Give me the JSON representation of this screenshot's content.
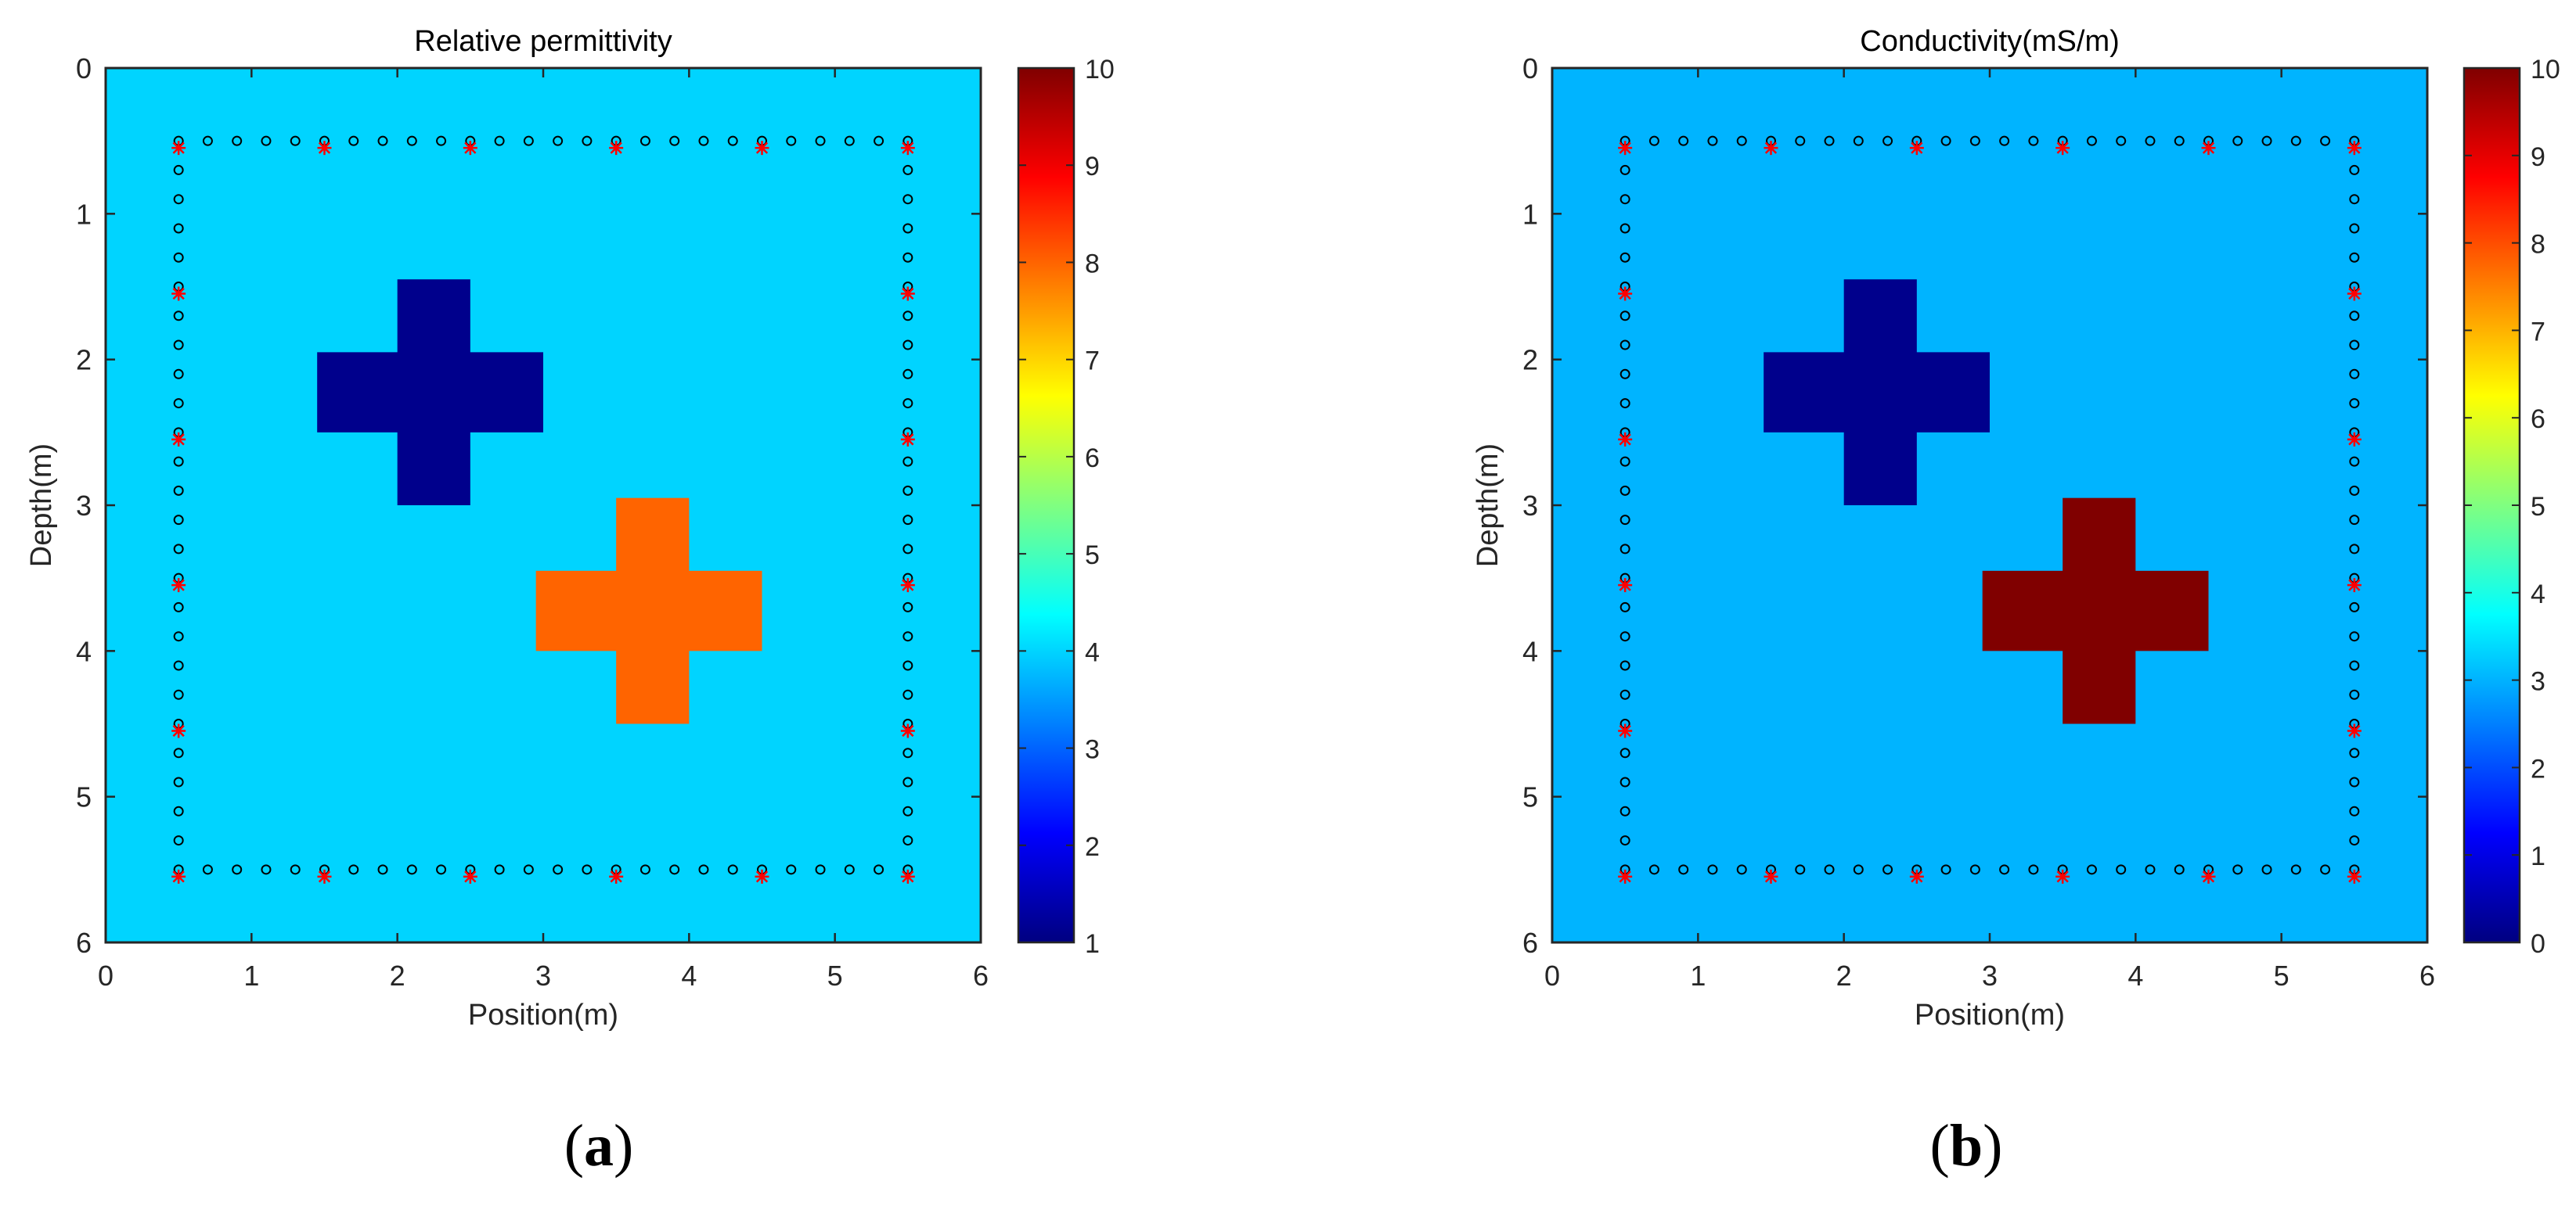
{
  "panels": [
    {
      "label_open": "(",
      "label_letter": "a",
      "label_close": ")"
    },
    {
      "label_open": "(",
      "label_letter": "b",
      "label_close": ")"
    }
  ],
  "chart_data": [
    {
      "type": "heatmap",
      "title": "Relative permittivity",
      "xlabel": "Position(m)",
      "ylabel": "Depth(m)",
      "xlim": [
        0,
        6
      ],
      "ylim": [
        0,
        6
      ],
      "y_reversed": true,
      "xticks": [
        0,
        1,
        2,
        3,
        4,
        5,
        6
      ],
      "yticks": [
        0,
        1,
        2,
        3,
        4,
        5,
        6
      ],
      "colormap": "jet",
      "clim": [
        1,
        10
      ],
      "colorbar_ticks": [
        1,
        2,
        3,
        4,
        5,
        6,
        7,
        8,
        9,
        10
      ],
      "background_value": 4,
      "background_color": "#00d4ff",
      "anomalies": [
        {
          "value": 1,
          "color": "#00008c",
          "rects": [
            {
              "x": [
                2.0,
                2.5
              ],
              "y": [
                1.45,
                3.0
              ]
            },
            {
              "x": [
                1.45,
                3.0
              ],
              "y": [
                1.95,
                2.5
              ]
            }
          ]
        },
        {
          "value": 8,
          "color": "#ff6400",
          "rects": [
            {
              "x": [
                3.5,
                4.0
              ],
              "y": [
                2.95,
                4.5
              ]
            },
            {
              "x": [
                2.95,
                4.5
              ],
              "y": [
                3.45,
                4.0
              ]
            }
          ]
        }
      ],
      "receiver_marker": "o",
      "receiver_color": "#000000",
      "receiver_spacing": 0.2,
      "receiver_range": [
        0.5,
        5.5
      ],
      "source_marker": "*",
      "source_color": "#ff0000",
      "source_positions": [
        0.5,
        1.5,
        2.5,
        3.5,
        4.5,
        5.5
      ],
      "survey_bounds": [
        0.5,
        5.5
      ]
    },
    {
      "type": "heatmap",
      "title": "Conductivity(mS/m)",
      "xlabel": "Position(m)",
      "ylabel": "Depth(m)",
      "xlim": [
        0,
        6
      ],
      "ylim": [
        0,
        6
      ],
      "y_reversed": true,
      "xticks": [
        0,
        1,
        2,
        3,
        4,
        5,
        6
      ],
      "yticks": [
        0,
        1,
        2,
        3,
        4,
        5,
        6
      ],
      "colormap": "jet",
      "clim": [
        0,
        10
      ],
      "colorbar_ticks": [
        0,
        1,
        2,
        3,
        4,
        5,
        6,
        7,
        8,
        9,
        10
      ],
      "background_value": 3,
      "background_color": "#00b4ff",
      "anomalies": [
        {
          "value": 0,
          "color": "#00008c",
          "rects": [
            {
              "x": [
                2.0,
                2.5
              ],
              "y": [
                1.45,
                3.0
              ]
            },
            {
              "x": [
                1.45,
                3.0
              ],
              "y": [
                1.95,
                2.5
              ]
            }
          ]
        },
        {
          "value": 10,
          "color": "#800000",
          "rects": [
            {
              "x": [
                3.5,
                4.0
              ],
              "y": [
                2.95,
                4.5
              ]
            },
            {
              "x": [
                2.95,
                4.5
              ],
              "y": [
                3.45,
                4.0
              ]
            }
          ]
        }
      ],
      "receiver_marker": "o",
      "receiver_color": "#000000",
      "receiver_spacing": 0.2,
      "receiver_range": [
        0.5,
        5.5
      ],
      "source_marker": "*",
      "source_color": "#ff0000",
      "source_positions": [
        0.5,
        1.5,
        2.5,
        3.5,
        4.5,
        5.5
      ],
      "survey_bounds": [
        0.5,
        5.5
      ]
    }
  ]
}
